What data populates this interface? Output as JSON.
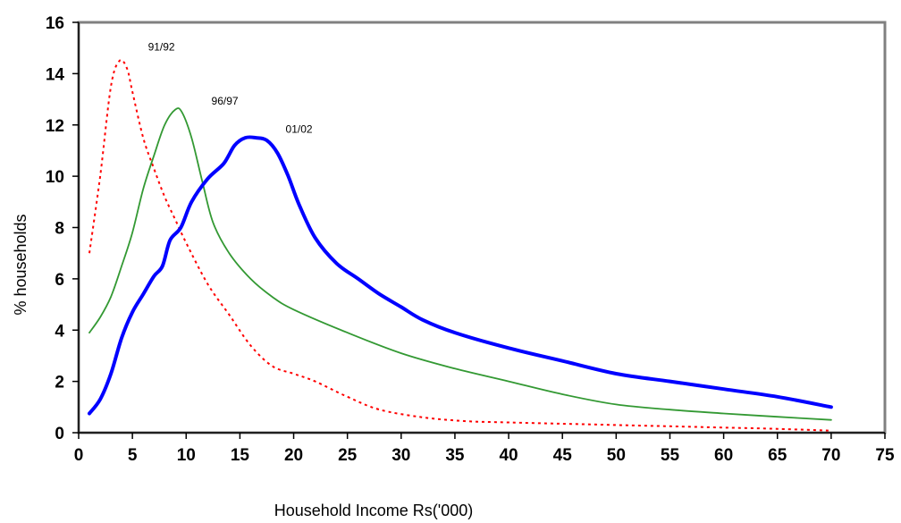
{
  "chart_data": {
    "type": "line",
    "title": "",
    "xlabel": "Household Income Rs('000)",
    "ylabel": "% households",
    "xlim": [
      0,
      75
    ],
    "ylim": [
      0,
      16
    ],
    "xticks": [
      0,
      5,
      10,
      15,
      20,
      25,
      30,
      35,
      40,
      45,
      50,
      55,
      60,
      65,
      70,
      75
    ],
    "yticks": [
      0,
      2,
      4,
      6,
      8,
      10,
      12,
      14,
      16
    ],
    "grid": false,
    "legend": "none",
    "series": [
      {
        "name": "91/92",
        "color": "#ff0000",
        "style": "dotted",
        "points": [
          [
            1,
            7.0
          ],
          [
            2,
            10.0
          ],
          [
            3,
            13.5
          ],
          [
            3.8,
            14.5
          ],
          [
            4.5,
            14.2
          ],
          [
            5,
            13.3
          ],
          [
            6,
            11.5
          ],
          [
            7,
            10.3
          ],
          [
            8,
            9.2
          ],
          [
            9,
            8.3
          ],
          [
            10,
            7.4
          ],
          [
            12,
            5.8
          ],
          [
            14,
            4.6
          ],
          [
            16,
            3.4
          ],
          [
            18,
            2.6
          ],
          [
            20,
            2.3
          ],
          [
            22,
            2.0
          ],
          [
            25,
            1.4
          ],
          [
            28,
            0.9
          ],
          [
            32,
            0.6
          ],
          [
            36,
            0.45
          ],
          [
            40,
            0.4
          ],
          [
            45,
            0.35
          ],
          [
            50,
            0.3
          ],
          [
            55,
            0.25
          ],
          [
            60,
            0.2
          ],
          [
            65,
            0.15
          ],
          [
            70,
            0.08
          ]
        ],
        "label_at": [
          7.7,
          14.9
        ]
      },
      {
        "name": "96/97",
        "color": "#339933",
        "style": "solid",
        "points": [
          [
            1,
            3.9
          ],
          [
            2,
            4.5
          ],
          [
            3,
            5.3
          ],
          [
            4,
            6.5
          ],
          [
            5,
            7.8
          ],
          [
            6,
            9.5
          ],
          [
            7,
            10.8
          ],
          [
            8,
            12.0
          ],
          [
            9,
            12.6
          ],
          [
            9.6,
            12.5
          ],
          [
            10.5,
            11.5
          ],
          [
            11.5,
            9.8
          ],
          [
            12.5,
            8.2
          ],
          [
            14,
            7.0
          ],
          [
            16,
            6.0
          ],
          [
            18,
            5.3
          ],
          [
            20,
            4.8
          ],
          [
            25,
            3.9
          ],
          [
            30,
            3.1
          ],
          [
            35,
            2.5
          ],
          [
            40,
            2.0
          ],
          [
            45,
            1.5
          ],
          [
            50,
            1.1
          ],
          [
            55,
            0.9
          ],
          [
            60,
            0.75
          ],
          [
            65,
            0.62
          ],
          [
            70,
            0.5
          ]
        ],
        "label_at": [
          13.6,
          12.8
        ]
      },
      {
        "name": "01/02",
        "color": "#0000ff",
        "style": "thick",
        "points": [
          [
            1,
            0.75
          ],
          [
            2,
            1.3
          ],
          [
            3,
            2.3
          ],
          [
            4,
            3.7
          ],
          [
            5,
            4.7
          ],
          [
            6,
            5.4
          ],
          [
            7,
            6.1
          ],
          [
            7.8,
            6.5
          ],
          [
            8.5,
            7.5
          ],
          [
            9.5,
            8.0
          ],
          [
            10.5,
            9.0
          ],
          [
            12,
            9.9
          ],
          [
            13.5,
            10.5
          ],
          [
            14.5,
            11.2
          ],
          [
            15.5,
            11.5
          ],
          [
            16.5,
            11.5
          ],
          [
            17.5,
            11.4
          ],
          [
            18.5,
            10.9
          ],
          [
            19.5,
            10.0
          ],
          [
            20.5,
            8.9
          ],
          [
            22,
            7.6
          ],
          [
            24,
            6.6
          ],
          [
            26,
            6.0
          ],
          [
            28,
            5.4
          ],
          [
            30,
            4.9
          ],
          [
            32,
            4.4
          ],
          [
            35,
            3.9
          ],
          [
            40,
            3.3
          ],
          [
            45,
            2.8
          ],
          [
            50,
            2.3
          ],
          [
            55,
            2.0
          ],
          [
            60,
            1.7
          ],
          [
            65,
            1.4
          ],
          [
            70,
            1.0
          ]
        ],
        "label_at": [
          20.5,
          11.7
        ]
      }
    ]
  }
}
